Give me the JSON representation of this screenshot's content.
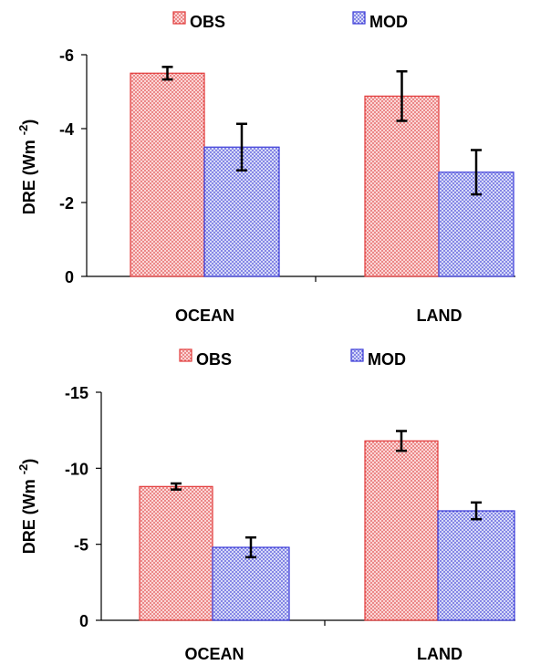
{
  "chart_data": [
    {
      "type": "bar",
      "categories": [
        "OCEAN",
        "LAND"
      ],
      "series": [
        {
          "name": "OBS",
          "values": [
            -5.5,
            -4.88
          ],
          "error": [
            0.17,
            0.67
          ],
          "color": "#e23a3a",
          "fill": "#f6b3b3"
        },
        {
          "name": "MOD",
          "values": [
            -3.5,
            -2.82
          ],
          "error": [
            0.63,
            0.6
          ],
          "color": "#3a3ad8",
          "fill": "#b3b8f0"
        }
      ],
      "ylabel": "DRE (Wm",
      "ylabel_sup": "-2",
      "ylabel_close": ")",
      "ylim": [
        0,
        -6
      ],
      "yticks": [
        0,
        -2,
        -4,
        -6
      ],
      "ytick_labels": [
        "0",
        "-2",
        "-4",
        "-6"
      ],
      "legend_position": "top"
    },
    {
      "type": "bar",
      "categories": [
        "OCEAN",
        "LAND"
      ],
      "series": [
        {
          "name": "OBS",
          "values": [
            -8.8,
            -11.8
          ],
          "error": [
            0.2,
            0.65
          ],
          "color": "#e23a3a",
          "fill": "#f6b3b3"
        },
        {
          "name": "MOD",
          "values": [
            -4.8,
            -7.2
          ],
          "error": [
            0.65,
            0.55
          ],
          "color": "#3a3ad8",
          "fill": "#b3b8f0"
        }
      ],
      "ylabel": "DRE (Wm",
      "ylabel_sup": "-2",
      "ylabel_close": ")",
      "ylim": [
        0,
        -15
      ],
      "yticks": [
        0,
        -5,
        -10,
        -15
      ],
      "ytick_labels": [
        "0",
        "-5",
        "-10",
        "-15"
      ],
      "legend_position": "top"
    }
  ]
}
